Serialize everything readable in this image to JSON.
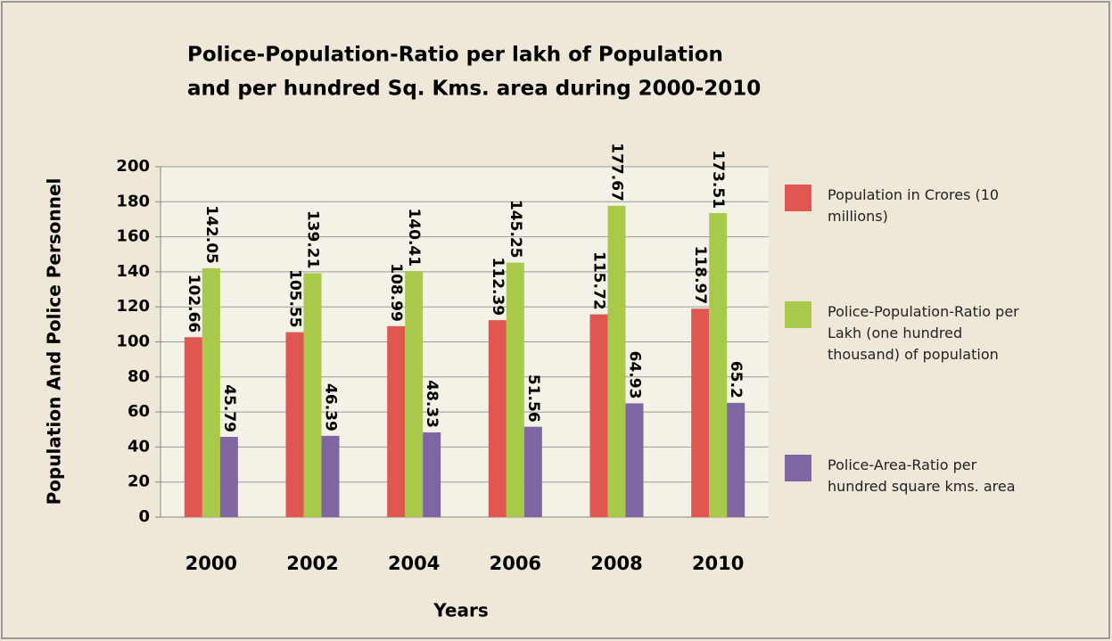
{
  "chart_data": {
    "type": "bar",
    "title": [
      "Police-Population-Ratio per lakh of Population",
      "and per hundred Sq. Kms. area during 2000-2010"
    ],
    "x_label": "Years",
    "y_label": "Population And Police Personnel",
    "categories": [
      "2000",
      "2002",
      "2004",
      "2006",
      "2008",
      "2010"
    ],
    "series": [
      {
        "name": "Population in Crores (10 millions)",
        "color": "#e05650",
        "values": [
          102.66,
          105.55,
          108.99,
          112.39,
          115.72,
          118.97
        ]
      },
      {
        "name": "Police-Population-Ratio per Lakh (one hundred thousand) of population",
        "color": "#a9c94b",
        "values": [
          142.05,
          139.21,
          140.41,
          145.25,
          177.67,
          173.51
        ]
      },
      {
        "name": "Police-Area-Ratio per hundred square kms. area",
        "color": "#8065a3",
        "values": [
          45.79,
          46.39,
          48.33,
          51.56,
          64.93,
          65.2
        ]
      }
    ],
    "ylim": [
      0,
      200
    ],
    "yticks": [
      0,
      20,
      40,
      60,
      80,
      100,
      120,
      140,
      160,
      180,
      200
    ],
    "grid": true,
    "legend": "right"
  }
}
